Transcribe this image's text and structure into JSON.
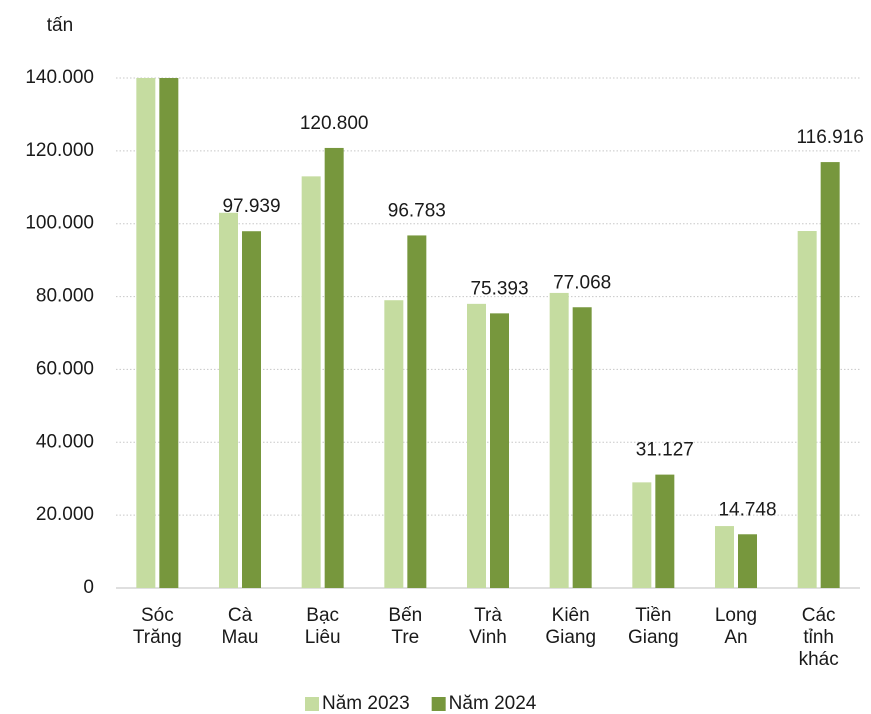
{
  "chart_data": {
    "type": "bar",
    "y_label": "tấn",
    "categories": [
      "Sóc Trăng",
      "Cà Mau",
      "Bạc Liêu",
      "Bến Tre",
      "Trà Vinh",
      "Kiên Giang",
      "Tiền Giang",
      "Long An",
      "Các tỉnh khác"
    ],
    "series": [
      {
        "name": "Năm 2023",
        "color": "#c5dca0",
        "values": [
          140000,
          103000,
          113000,
          79000,
          78000,
          81000,
          29000,
          17000,
          98000
        ]
      },
      {
        "name": "Năm 2024",
        "color": "#77973d",
        "values": [
          140000,
          97939,
          120800,
          96783,
          75393,
          77068,
          31127,
          14748,
          116916
        ],
        "value_labels": [
          null,
          "97.939",
          "120.800",
          "96.783",
          "75.393",
          "77.068",
          "31.127",
          "14.748",
          "116.916"
        ]
      }
    ],
    "ylim": [
      0,
      140000
    ],
    "yticks": [
      0,
      {
        "value": 20000,
        "label": "20.000"
      },
      {
        "value": 40000,
        "label": "40.000"
      },
      {
        "value": 60000,
        "label": "60.000"
      },
      {
        "value": 80000,
        "label": "80.000"
      },
      {
        "value": 100000,
        "label": "100.000"
      },
      {
        "value": 120000,
        "label": "120.000"
      },
      {
        "value": 140000,
        "label": "140.000"
      }
    ],
    "grid": true,
    "legend": "bottom"
  }
}
